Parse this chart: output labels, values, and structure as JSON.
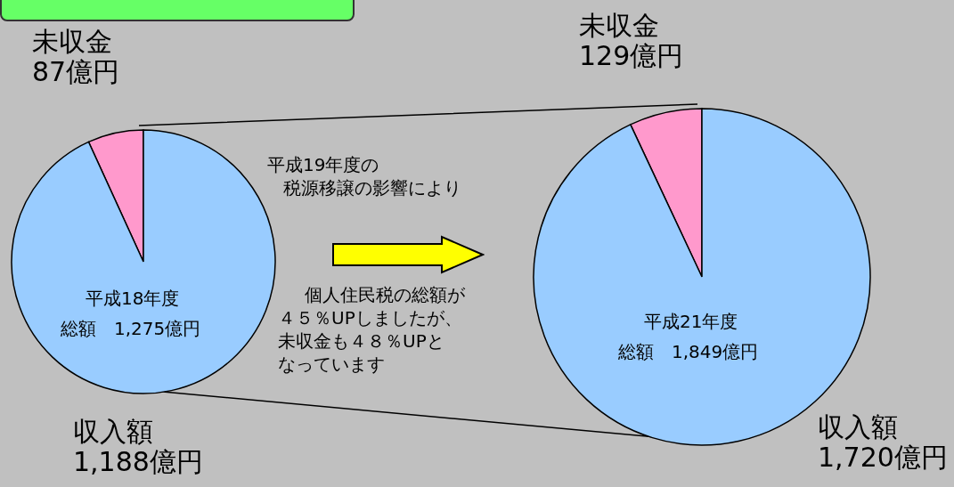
{
  "chart_data": [
    {
      "type": "pie",
      "categories": [
        "未収金",
        "収入額"
      ],
      "values": [
        87,
        1188
      ],
      "value_labels": [
        "87億円",
        "1,188億円"
      ],
      "colors": [
        "#ff99cc",
        "#99ccff"
      ],
      "annotations": [
        "平成18年度",
        "総額　1,275億円"
      ]
    },
    {
      "type": "pie",
      "categories": [
        "未収金",
        "収入額"
      ],
      "values": [
        129,
        1720
      ],
      "value_labels": [
        "129億円",
        "1,720億円"
      ],
      "colors": [
        "#ff99cc",
        "#99ccff"
      ],
      "annotations": [
        "平成21年度",
        "総額　1,849億円",
        "平成19年度の",
        "税源移譲の影響により",
        "個人住民税の総額が",
        "４５％UPしましたが、",
        "未収金も４８％UPと",
        "なっています"
      ]
    }
  ]
}
